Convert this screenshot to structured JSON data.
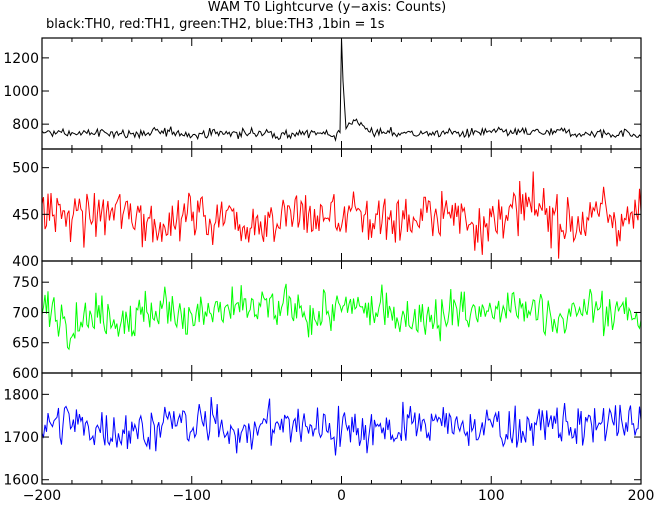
{
  "title": "WAM T0 Lightcurve (y−axis: Counts)",
  "subtitle": "black:TH0, red:TH1, green:TH2, blue:TH3 ,1bin = 1s",
  "chart_data": {
    "type": "line",
    "x": {
      "range": [
        -200,
        200
      ],
      "ticks": [
        -200,
        -100,
        0,
        100,
        200
      ],
      "tick_labels": [
        "−200",
        "−100",
        "0",
        "100",
        "200"
      ],
      "step": 1
    },
    "panels": [
      {
        "series_name": "TH0",
        "color": "#000000",
        "ylim": [
          650,
          1320
        ],
        "yticks": [
          800,
          1000,
          1200
        ],
        "ytick_labels": [
          "800",
          "1000",
          "1200"
        ],
        "baseline": 745,
        "noise": 22,
        "peak": {
          "x": 0,
          "value": 1320
        },
        "shoulder": {
          "x": 8,
          "value": 840
        }
      },
      {
        "series_name": "TH1",
        "color": "#ff0000",
        "ylim": [
          400,
          520
        ],
        "yticks": [
          400,
          450,
          500
        ],
        "ytick_labels": [
          "400",
          "450",
          "500"
        ],
        "baseline": 448,
        "noise": 22
      },
      {
        "series_name": "TH2",
        "color": "#00ff00",
        "ylim": [
          600,
          785
        ],
        "yticks": [
          600,
          650,
          700,
          750
        ],
        "ytick_labels": [
          "600",
          "650",
          "700",
          "750"
        ],
        "baseline": 700,
        "noise": 28
      },
      {
        "series_name": "TH3",
        "color": "#0000ff",
        "ylim": [
          1590,
          1850
        ],
        "yticks": [
          1600,
          1700,
          1800
        ],
        "ytick_labels": [
          "1600",
          "1700",
          "1800"
        ],
        "baseline": 1725,
        "noise": 40
      }
    ]
  }
}
